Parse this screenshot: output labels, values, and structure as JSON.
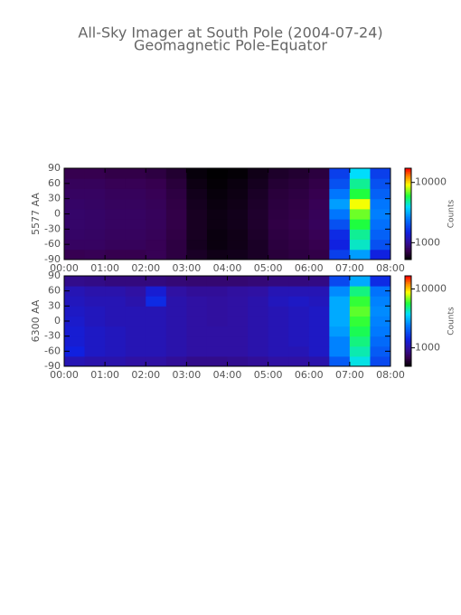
{
  "chart_data": [
    {
      "type": "heatmap",
      "title": "All-Sky Imager at South Pole (2004-07-24)",
      "subtitle": "Geomagnetic Pole-Equator",
      "ylabel": "5577 AA",
      "colorbar_label": "Counts",
      "color_log": true,
      "xlim": [
        0,
        8
      ],
      "ylim": [
        -90,
        90
      ],
      "xticks": [
        {
          "value": 0,
          "label": "00:00"
        },
        {
          "value": 1,
          "label": "01:00"
        },
        {
          "value": 2,
          "label": "02:00"
        },
        {
          "value": 3,
          "label": "03:00"
        },
        {
          "value": 4,
          "label": "04:00"
        },
        {
          "value": 5,
          "label": "05:00"
        },
        {
          "value": 6,
          "label": "06:00"
        },
        {
          "value": 7,
          "label": "07:00"
        },
        {
          "value": 8,
          "label": "08:00"
        }
      ],
      "yticks": [
        -90,
        -60,
        -30,
        0,
        30,
        60,
        90
      ],
      "clim": [
        525,
        17200
      ],
      "cticks": [
        1000,
        10000
      ],
      "xbins": [
        0,
        0.5,
        1,
        1.5,
        2,
        2.5,
        3,
        3.5,
        4,
        4.5,
        5,
        5.5,
        6,
        6.5,
        7,
        7.5,
        8
      ],
      "ybins": [
        -90,
        -70,
        -50,
        -30,
        -10,
        10,
        30,
        50,
        70,
        90
      ],
      "z": [
        [
          750,
          760,
          740,
          740,
          760,
          700,
          620,
          580,
          590,
          620,
          680,
          700,
          720,
          1800,
          3000,
          1500
        ],
        [
          800,
          800,
          780,
          780,
          760,
          700,
          600,
          560,
          580,
          620,
          690,
          710,
          740,
          1500,
          4500,
          2000
        ],
        [
          820,
          810,
          790,
          790,
          770,
          710,
          610,
          560,
          580,
          630,
          700,
          720,
          760,
          1600,
          5000,
          2200
        ],
        [
          830,
          820,
          800,
          800,
          780,
          720,
          610,
          570,
          590,
          640,
          710,
          730,
          780,
          2000,
          6000,
          2400
        ],
        [
          830,
          820,
          800,
          800,
          780,
          720,
          610,
          570,
          590,
          640,
          700,
          720,
          770,
          2500,
          7000,
          2600
        ],
        [
          820,
          810,
          790,
          790,
          770,
          710,
          600,
          560,
          580,
          630,
          690,
          710,
          760,
          3000,
          9000,
          2500
        ],
        [
          800,
          800,
          780,
          780,
          760,
          700,
          590,
          550,
          570,
          620,
          680,
          700,
          740,
          2500,
          6000,
          2200
        ],
        [
          780,
          780,
          760,
          760,
          740,
          680,
          570,
          540,
          560,
          600,
          660,
          680,
          720,
          2000,
          5000,
          2000
        ],
        [
          740,
          740,
          720,
          720,
          700,
          650,
          550,
          530,
          540,
          580,
          630,
          650,
          690,
          1800,
          4000,
          1800
        ]
      ]
    },
    {
      "type": "heatmap",
      "ylabel": "6300 AA",
      "colorbar_label": "Counts",
      "color_log": true,
      "xlim": [
        0,
        8
      ],
      "ylim": [
        -90,
        90
      ],
      "xticks": [
        {
          "value": 0,
          "label": "00:00"
        },
        {
          "value": 1,
          "label": "01:00"
        },
        {
          "value": 2,
          "label": "02:00"
        },
        {
          "value": 3,
          "label": "03:00"
        },
        {
          "value": 4,
          "label": "04:00"
        },
        {
          "value": 5,
          "label": "05:00"
        },
        {
          "value": 6,
          "label": "06:00"
        },
        {
          "value": 7,
          "label": "07:00"
        },
        {
          "value": 8,
          "label": "08:00"
        }
      ],
      "yticks": [
        -90,
        -60,
        -30,
        0,
        30,
        60,
        90
      ],
      "clim": [
        486,
        16700
      ],
      "cticks": [
        1000,
        10000
      ],
      "xbins": [
        0,
        0.5,
        1,
        1.5,
        2,
        2.5,
        3,
        3.5,
        4,
        4.5,
        5,
        5.5,
        6,
        6.5,
        7,
        7.5,
        8
      ],
      "ybins": [
        -90,
        -70,
        -50,
        -30,
        -10,
        10,
        30,
        50,
        70,
        90
      ],
      "z": [
        [
          1100,
          1050,
          1050,
          1000,
          1000,
          950,
          900,
          900,
          920,
          950,
          1000,
          1000,
          1050,
          2000,
          4000,
          1800
        ],
        [
          1400,
          1200,
          1150,
          1100,
          1100,
          1050,
          1000,
          1000,
          1000,
          1050,
          1100,
          1100,
          1200,
          2500,
          4500,
          2000
        ],
        [
          1300,
          1200,
          1150,
          1100,
          1100,
          1050,
          1000,
          1000,
          1000,
          1050,
          1100,
          1150,
          1200,
          2500,
          5000,
          2200
        ],
        [
          1300,
          1200,
          1150,
          1100,
          1100,
          1050,
          1000,
          1000,
          1000,
          1050,
          1100,
          1150,
          1200,
          2800,
          5500,
          2400
        ],
        [
          1250,
          1150,
          1100,
          1100,
          1100,
          1050,
          1000,
          980,
          1000,
          1050,
          1100,
          1150,
          1200,
          3000,
          6000,
          2500
        ],
        [
          1200,
          1150,
          1100,
          1100,
          1100,
          1050,
          1000,
          980,
          1000,
          1050,
          1100,
          1150,
          1200,
          3000,
          6500,
          2600
        ],
        [
          1150,
          1100,
          1100,
          1050,
          1500,
          1050,
          1000,
          980,
          1000,
          1050,
          1150,
          1200,
          1150,
          3000,
          6000,
          2500
        ],
        [
          1100,
          1050,
          1050,
          1000,
          1300,
          1000,
          950,
          950,
          980,
          1000,
          1100,
          1100,
          1100,
          2600,
          5000,
          2300
        ],
        [
          900,
          880,
          850,
          850,
          850,
          820,
          800,
          800,
          800,
          820,
          850,
          850,
          870,
          1800,
          3000,
          1500
        ]
      ]
    }
  ]
}
